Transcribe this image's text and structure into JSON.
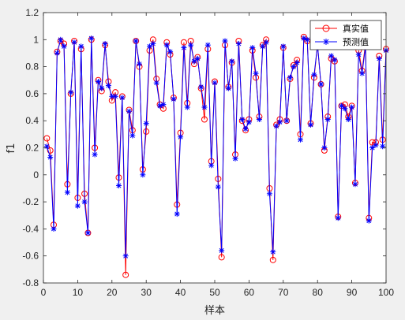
{
  "chart_data": {
    "type": "line",
    "title": "",
    "xlabel": "样本",
    "ylabel": "f1",
    "xlim": [
      0,
      100
    ],
    "ylim": [
      -0.8,
      1.2
    ],
    "xticks": [
      0,
      10,
      20,
      30,
      40,
      50,
      60,
      70,
      80,
      90,
      100
    ],
    "yticks": [
      -0.8,
      -0.6,
      -0.4,
      -0.2,
      0,
      0.2,
      0.4,
      0.6,
      0.8,
      1,
      1.2
    ],
    "grid": false,
    "legend_position": "top-right",
    "series": [
      {
        "name": "真实值",
        "color": "#ff0000",
        "marker": "circle",
        "x": [
          1,
          2,
          3,
          4,
          5,
          6,
          7,
          8,
          9,
          10,
          11,
          12,
          13,
          14,
          15,
          16,
          17,
          18,
          19,
          20,
          21,
          22,
          23,
          24,
          25,
          26,
          27,
          28,
          29,
          30,
          31,
          32,
          33,
          34,
          35,
          36,
          37,
          38,
          39,
          40,
          41,
          42,
          43,
          44,
          45,
          46,
          47,
          48,
          49,
          50,
          51,
          52,
          53,
          54,
          55,
          56,
          57,
          58,
          59,
          60,
          61,
          62,
          63,
          64,
          65,
          66,
          67,
          68,
          69,
          70,
          71,
          72,
          73,
          74,
          75,
          76,
          77,
          78,
          79,
          80,
          81,
          82,
          83,
          84,
          85,
          86,
          87,
          88,
          89,
          90,
          91,
          92,
          93,
          94,
          95,
          96,
          97,
          98,
          99,
          100
        ],
        "values": [
          0.27,
          0.18,
          -0.37,
          0.91,
          0.99,
          0.97,
          -0.07,
          0.6,
          0.99,
          -0.17,
          0.93,
          -0.14,
          -0.43,
          1.0,
          0.2,
          0.7,
          0.62,
          0.96,
          0.69,
          0.55,
          0.61,
          -0.02,
          0.58,
          -0.74,
          0.48,
          0.33,
          0.99,
          0.8,
          0.04,
          0.32,
          0.92,
          1.0,
          0.71,
          0.52,
          0.49,
          0.98,
          0.89,
          0.57,
          -0.22,
          0.31,
          0.98,
          0.53,
          0.99,
          0.82,
          0.87,
          0.64,
          0.41,
          0.93,
          0.1,
          0.69,
          -0.03,
          -0.61,
          0.96,
          0.65,
          0.83,
          0.15,
          0.99,
          0.4,
          0.33,
          0.41,
          0.92,
          0.72,
          0.43,
          0.96,
          1.0,
          -0.1,
          -0.63,
          0.37,
          0.41,
          0.94,
          0.4,
          0.71,
          0.81,
          0.85,
          0.3,
          1.02,
          0.99,
          0.38,
          0.72,
          0.96,
          0.67,
          0.18,
          0.43,
          0.86,
          0.84,
          -0.31,
          0.51,
          0.52,
          0.43,
          0.51,
          -0.06,
          0.92,
          0.77,
          0.97,
          -0.32,
          0.24,
          0.24,
          0.88,
          0.26,
          0.93
        ]
      },
      {
        "name": "预测值",
        "color": "#0000ff",
        "marker": "star",
        "x": [
          1,
          2,
          3,
          4,
          5,
          6,
          7,
          8,
          9,
          10,
          11,
          12,
          13,
          14,
          15,
          16,
          17,
          18,
          19,
          20,
          21,
          22,
          23,
          24,
          25,
          26,
          27,
          28,
          29,
          30,
          31,
          32,
          33,
          34,
          35,
          36,
          37,
          38,
          39,
          40,
          41,
          42,
          43,
          44,
          45,
          46,
          47,
          48,
          49,
          50,
          51,
          52,
          53,
          54,
          55,
          56,
          57,
          58,
          59,
          60,
          61,
          62,
          63,
          64,
          65,
          66,
          67,
          68,
          69,
          70,
          71,
          72,
          73,
          74,
          75,
          76,
          77,
          78,
          79,
          80,
          81,
          82,
          83,
          84,
          85,
          86,
          87,
          88,
          89,
          90,
          91,
          92,
          93,
          94,
          95,
          96,
          97,
          98,
          99,
          100
        ],
        "values": [
          0.21,
          0.13,
          -0.4,
          0.9,
          1.0,
          0.95,
          -0.13,
          0.61,
          0.98,
          -0.23,
          0.95,
          -0.2,
          -0.43,
          1.01,
          0.15,
          0.69,
          0.64,
          0.97,
          0.66,
          0.58,
          0.58,
          -0.08,
          0.57,
          -0.6,
          0.47,
          0.29,
          0.99,
          0.82,
          0.0,
          0.38,
          0.95,
          0.97,
          0.68,
          0.51,
          0.52,
          0.96,
          0.91,
          0.56,
          -0.29,
          0.28,
          0.94,
          0.5,
          0.96,
          0.84,
          0.86,
          0.65,
          0.5,
          0.96,
          0.07,
          0.68,
          -0.09,
          -0.56,
          0.99,
          0.64,
          0.84,
          0.12,
          0.97,
          0.41,
          0.34,
          0.39,
          0.94,
          0.75,
          0.41,
          0.95,
          0.98,
          -0.14,
          -0.57,
          0.36,
          0.39,
          0.95,
          0.4,
          0.72,
          0.8,
          0.83,
          0.26,
          1.01,
          1.0,
          0.37,
          0.74,
          0.96,
          0.67,
          0.2,
          0.41,
          0.88,
          0.85,
          -0.32,
          0.51,
          0.49,
          0.41,
          0.5,
          -0.07,
          0.89,
          0.75,
          0.95,
          -0.34,
          0.2,
          0.22,
          0.86,
          0.21,
          0.92
        ]
      }
    ]
  }
}
